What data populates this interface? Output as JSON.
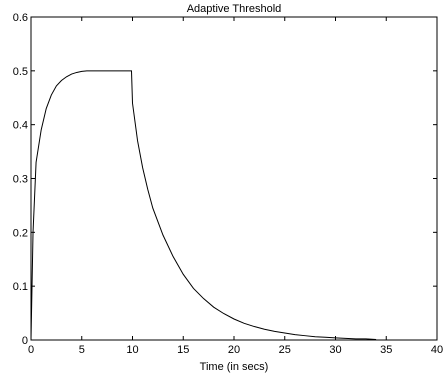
{
  "chart_data": {
    "type": "line",
    "title": "Adaptive Threshold",
    "xlabel": "Time (in secs)",
    "ylabel": "",
    "xlim": [
      0,
      40
    ],
    "ylim": [
      0,
      0.6
    ],
    "x_ticks": [
      "0",
      "5",
      "10",
      "15",
      "20",
      "25",
      "30",
      "35",
      "40"
    ],
    "y_ticks": [
      "0",
      "0.1",
      "0.2",
      "0.3",
      "0.4",
      "0.5",
      "0.6"
    ],
    "grid": false,
    "legend": "none",
    "line_color": "#000000",
    "series": [
      {
        "x": [
          0,
          0.2,
          0.5,
          1,
          1.5,
          2,
          2.5,
          3,
          3.5,
          4,
          4.5,
          5,
          5.5,
          6,
          6.5,
          7,
          8,
          9,
          9.9,
          10,
          10.5,
          11,
          11.5,
          12,
          13,
          14,
          15,
          16,
          17,
          18,
          19,
          20,
          21,
          22,
          23,
          24,
          25,
          26,
          27,
          28,
          29,
          30,
          31,
          32,
          33,
          34
        ],
        "y": [
          0,
          0.2,
          0.33,
          0.39,
          0.43,
          0.455,
          0.472,
          0.482,
          0.489,
          0.494,
          0.497,
          0.499,
          0.5,
          0.5,
          0.5,
          0.5,
          0.5,
          0.5,
          0.5,
          0.44,
          0.37,
          0.32,
          0.28,
          0.245,
          0.195,
          0.155,
          0.122,
          0.096,
          0.077,
          0.061,
          0.049,
          0.039,
          0.031,
          0.025,
          0.02,
          0.016,
          0.013,
          0.01,
          0.008,
          0.006,
          0.005,
          0.004,
          0.003,
          0.002,
          0.002,
          0.001
        ]
      }
    ]
  }
}
